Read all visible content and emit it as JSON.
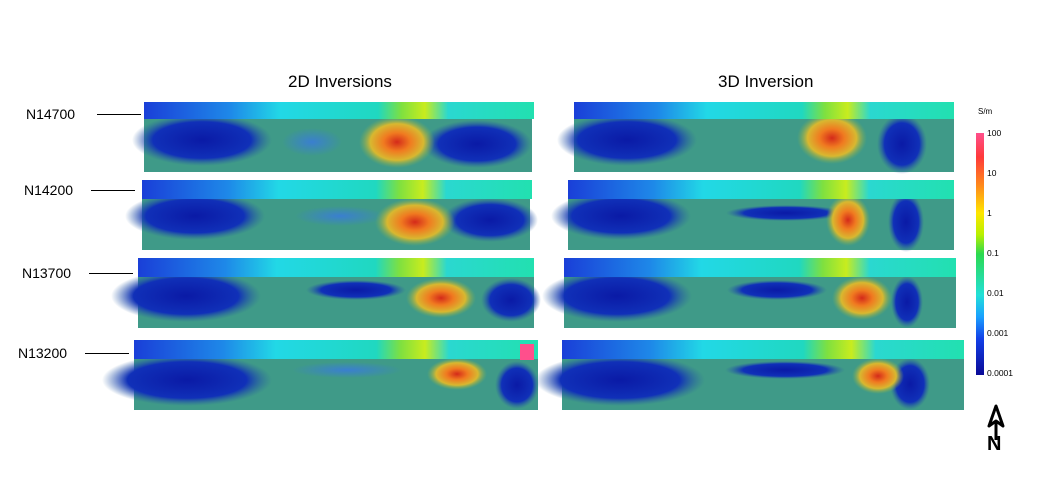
{
  "titles": {
    "left": "2D Inversions",
    "right": "3D Inversion"
  },
  "lines": [
    "N14700",
    "N14200",
    "N13700",
    "N13200"
  ],
  "colorbar": {
    "unit": "S/m",
    "ticks": [
      "100",
      "10",
      "1",
      "0.1",
      "0.01",
      "0.001",
      "0.0001"
    ],
    "colors": [
      "#ff4f8c",
      "#ff3a3a",
      "#ff8c1a",
      "#ffe600",
      "#b8f000",
      "#2bd94f",
      "#22e0d8",
      "#1aa0ff",
      "#1240e8",
      "#0a0a96"
    ]
  },
  "north": {
    "label": "N"
  }
}
